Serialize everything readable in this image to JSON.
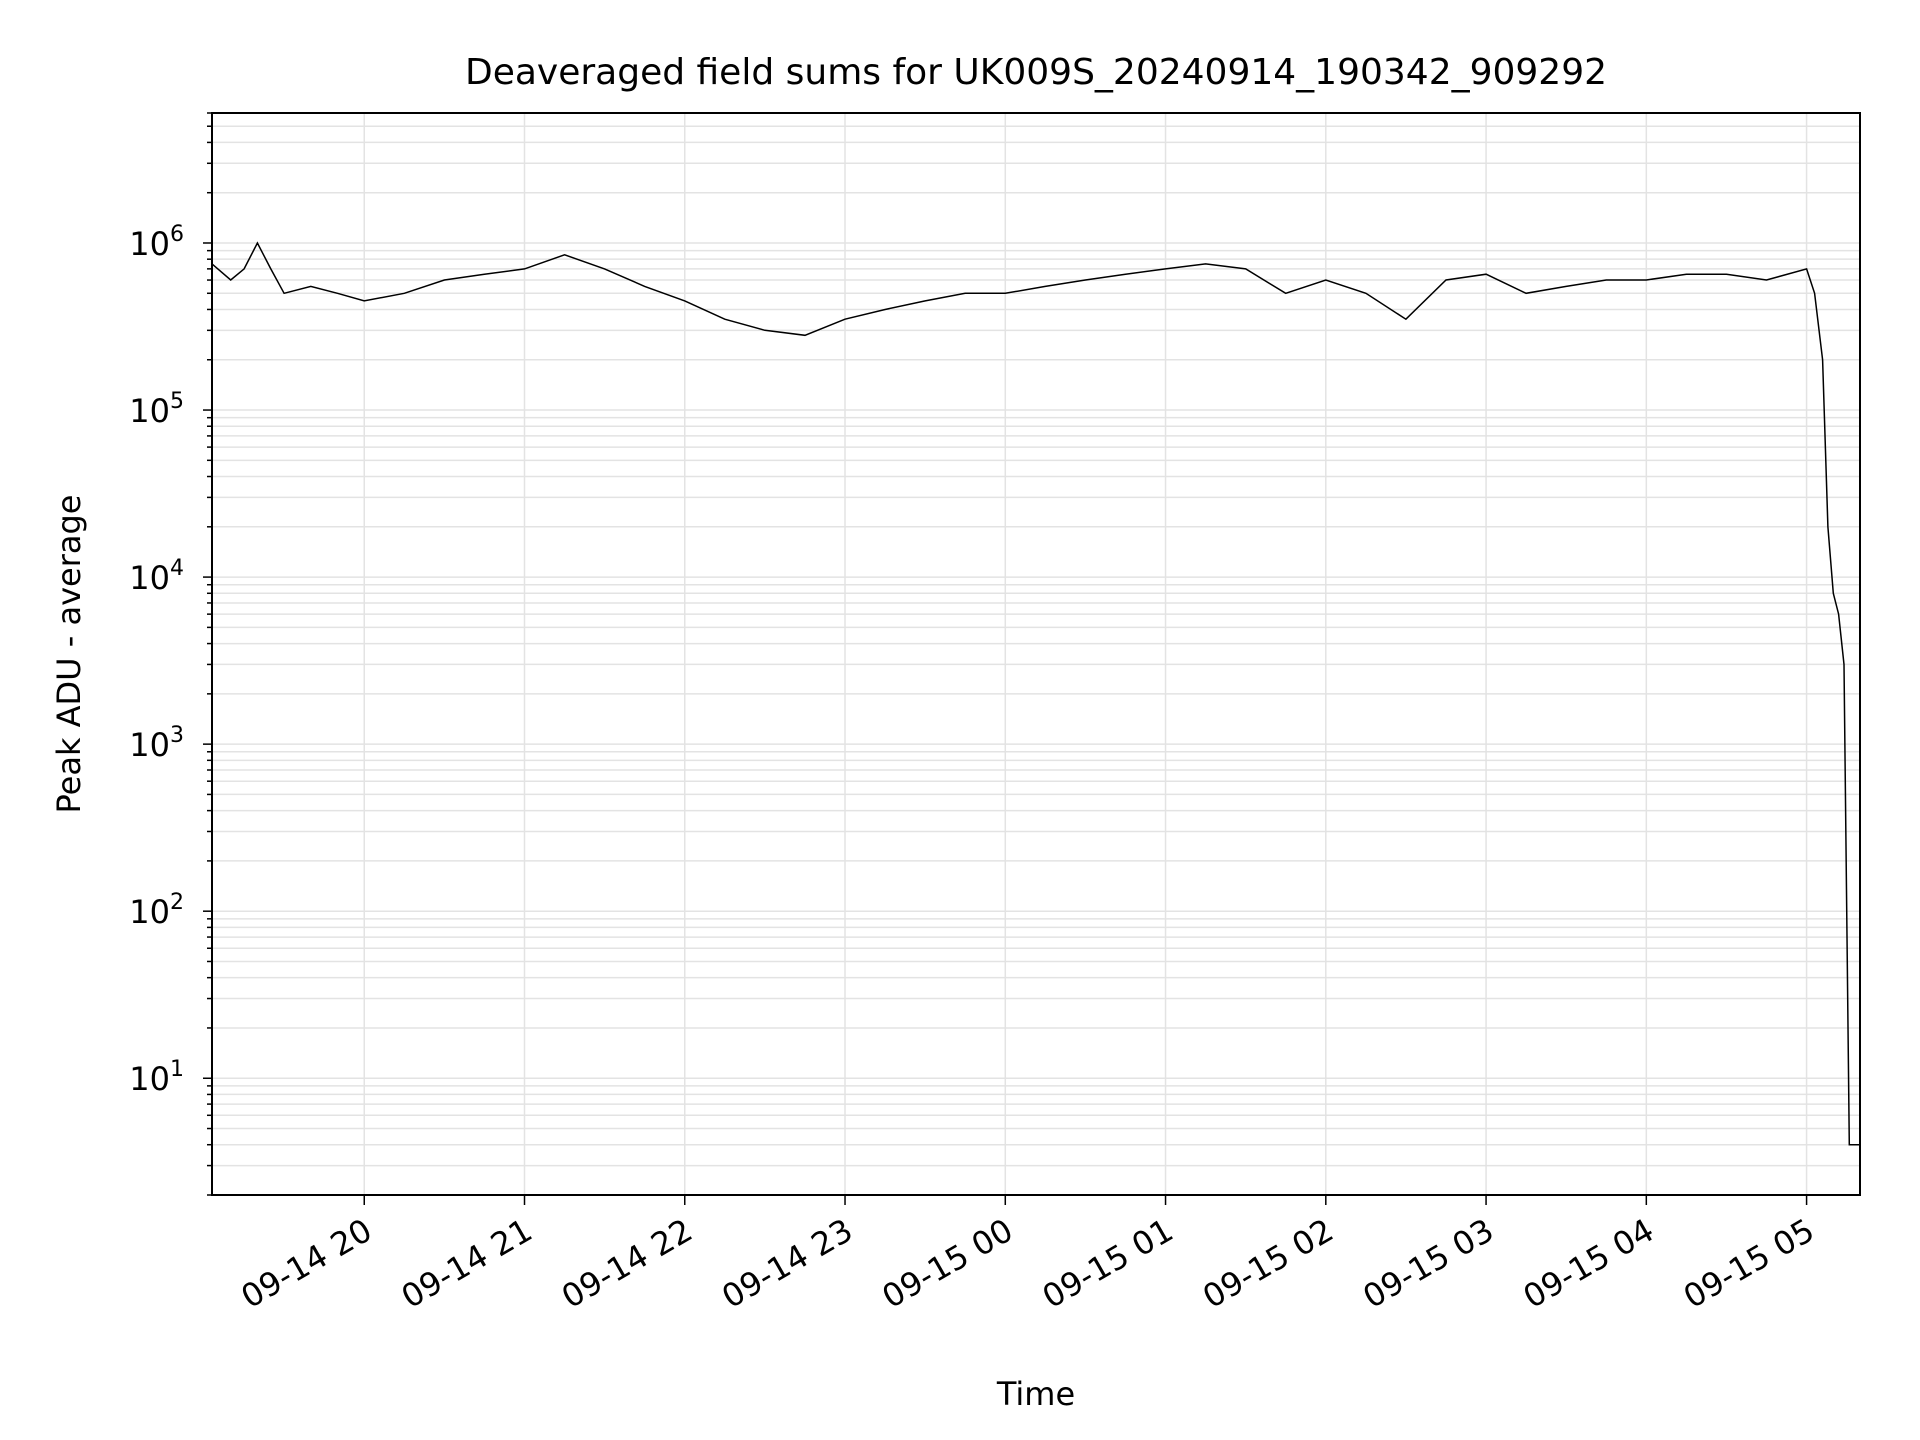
{
  "chart_data": {
    "type": "line",
    "title": "Deaveraged field sums for UK009S_20240914_190342_909292",
    "xlabel": "Time",
    "ylabel": "Peak ADU - average",
    "yscale": "log",
    "ylim": [
      2,
      6000000
    ],
    "xlim": [
      "2024-09-14 19:03",
      "2024-09-15 05:20"
    ],
    "grid": true,
    "x_tick_labels": [
      "09-14 20",
      "09-14 21",
      "09-14 22",
      "09-14 23",
      "09-15 00",
      "09-15 01",
      "09-15 02",
      "09-15 03",
      "09-15 04",
      "09-15 05"
    ],
    "y_ticks": [
      {
        "base": "10",
        "exp": "1"
      },
      {
        "base": "10",
        "exp": "2"
      },
      {
        "base": "10",
        "exp": "3"
      },
      {
        "base": "10",
        "exp": "4"
      },
      {
        "base": "10",
        "exp": "5"
      },
      {
        "base": "10",
        "exp": "6"
      }
    ],
    "series": [
      {
        "color": "#000000",
        "x": [
          "2024-09-14 19:03",
          "2024-09-14 19:10",
          "2024-09-14 19:15",
          "2024-09-14 19:20",
          "2024-09-14 19:25",
          "2024-09-14 19:30",
          "2024-09-14 19:40",
          "2024-09-14 19:50",
          "2024-09-14 20:00",
          "2024-09-14 20:15",
          "2024-09-14 20:30",
          "2024-09-14 20:45",
          "2024-09-14 21:00",
          "2024-09-14 21:15",
          "2024-09-14 21:30",
          "2024-09-14 21:45",
          "2024-09-14 22:00",
          "2024-09-14 22:15",
          "2024-09-14 22:30",
          "2024-09-14 22:45",
          "2024-09-14 23:00",
          "2024-09-14 23:15",
          "2024-09-14 23:30",
          "2024-09-14 23:45",
          "2024-09-15 00:00",
          "2024-09-15 00:15",
          "2024-09-15 00:30",
          "2024-09-15 00:45",
          "2024-09-15 01:00",
          "2024-09-15 01:15",
          "2024-09-15 01:30",
          "2024-09-15 01:45",
          "2024-09-15 02:00",
          "2024-09-15 02:15",
          "2024-09-15 02:30",
          "2024-09-15 02:45",
          "2024-09-15 03:00",
          "2024-09-15 03:15",
          "2024-09-15 03:30",
          "2024-09-15 03:45",
          "2024-09-15 04:00",
          "2024-09-15 04:15",
          "2024-09-15 04:30",
          "2024-09-15 04:45",
          "2024-09-15 05:00",
          "2024-09-15 05:03",
          "2024-09-15 05:06",
          "2024-09-15 05:08",
          "2024-09-15 05:10",
          "2024-09-15 05:12",
          "2024-09-15 05:14",
          "2024-09-15 05:16",
          "2024-09-15 05:18",
          "2024-09-15 05:20"
        ],
        "y": [
          750000,
          600000,
          700000,
          1000000,
          700000,
          500000,
          550000,
          500000,
          450000,
          500000,
          600000,
          650000,
          700000,
          850000,
          700000,
          550000,
          450000,
          350000,
          300000,
          280000,
          350000,
          400000,
          450000,
          500000,
          500000,
          550000,
          600000,
          650000,
          700000,
          750000,
          700000,
          500000,
          600000,
          500000,
          350000,
          600000,
          650000,
          500000,
          550000,
          600000,
          600000,
          650000,
          650000,
          600000,
          700000,
          500000,
          200000,
          20000,
          8000,
          6000,
          3000,
          4,
          4,
          4
        ]
      }
    ]
  }
}
